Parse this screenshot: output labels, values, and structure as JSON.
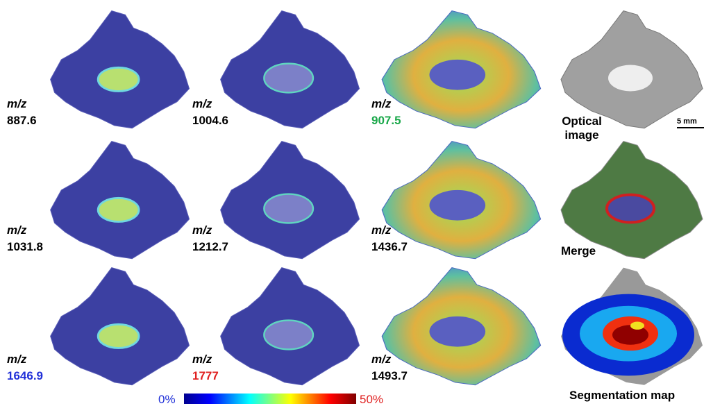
{
  "panels": [
    {
      "label": "m/z",
      "mz": "887.6",
      "color": "#000000"
    },
    {
      "label": "m/z",
      "mz": "1004.6",
      "color": "#000000"
    },
    {
      "label": "m/z",
      "mz": "907.5",
      "color": "#1aa84a"
    },
    {
      "label": "m/z",
      "mz": "1031.8",
      "color": "#000000"
    },
    {
      "label": "m/z",
      "mz": "1212.7",
      "color": "#000000"
    },
    {
      "label": "m/z",
      "mz": "1436.7",
      "color": "#000000"
    },
    {
      "label": "m/z",
      "mz": "1646.9",
      "color": "#1f2fd8"
    },
    {
      "label": "m/z",
      "mz": "1777",
      "color": "#e02020"
    },
    {
      "label": "m/z",
      "mz": "1493.7",
      "color": "#000000"
    }
  ],
  "optical": {
    "label": "Optical image",
    "scale_bar": "5 mm"
  },
  "merge": {
    "label": "Merge"
  },
  "segmentation": {
    "label": "Segmentation map"
  },
  "colorbar": {
    "min": "0%",
    "max": "50%"
  }
}
